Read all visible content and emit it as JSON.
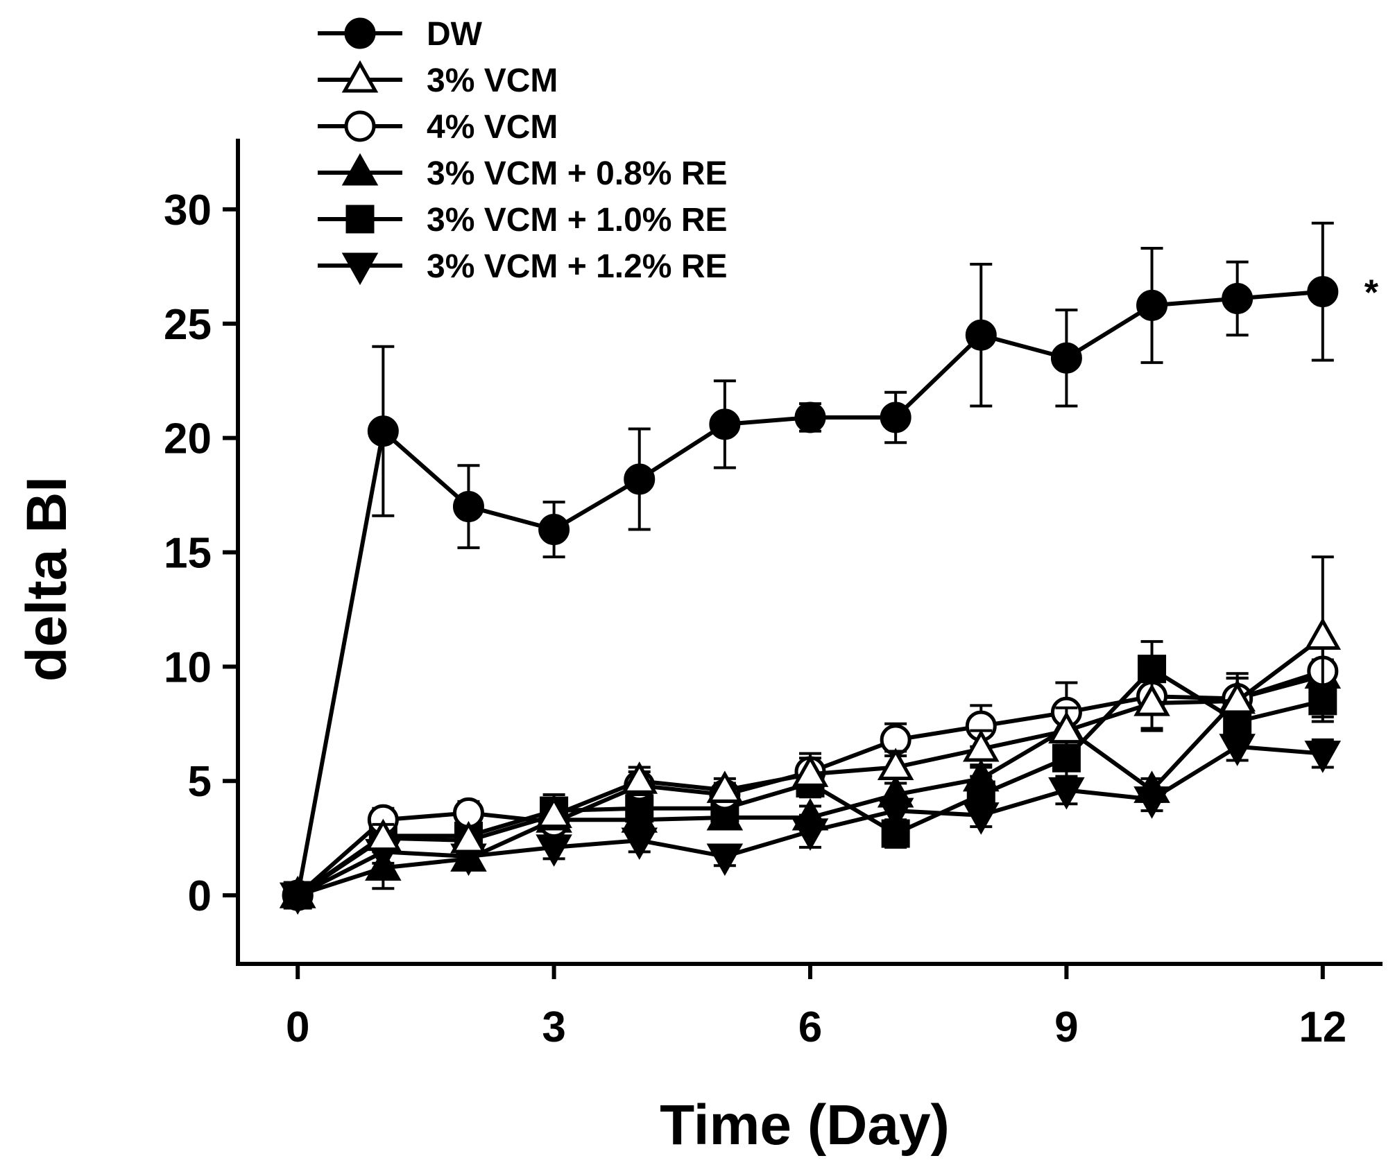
{
  "chart_data": {
    "type": "line",
    "title": "",
    "xlabel": "Time (Day)",
    "ylabel": "delta BI",
    "xlim": [
      -0.7,
      12.7
    ],
    "ylim": [
      -3,
      33
    ],
    "xticks": [
      0,
      3,
      6,
      9,
      12
    ],
    "yticks": [
      0,
      5,
      10,
      15,
      20,
      25,
      30
    ],
    "xtick_labels": [
      "0",
      "3",
      "6",
      "9",
      "12"
    ],
    "ytick_labels": [
      "0",
      "5",
      "10",
      "15",
      "20",
      "25",
      "30"
    ],
    "grid": false,
    "legend_position": "top-left",
    "x": [
      0,
      1,
      2,
      3,
      4,
      5,
      6,
      7,
      8,
      9,
      10,
      11,
      12
    ],
    "annotations": [
      {
        "text": "*",
        "x": 12,
        "y": 26.5
      }
    ],
    "series": [
      {
        "name": "DW",
        "marker": "filled-circle",
        "values": [
          0,
          20.3,
          17.0,
          16.0,
          18.2,
          20.6,
          20.9,
          20.9,
          24.5,
          23.5,
          25.8,
          26.1,
          26.4
        ],
        "errors": [
          0,
          3.7,
          1.8,
          1.2,
          2.2,
          1.9,
          0.6,
          1.1,
          3.1,
          2.1,
          2.5,
          1.6,
          3.0
        ]
      },
      {
        "name": "3% VCM",
        "marker": "open-triangle-up",
        "values": [
          0,
          2.5,
          2.4,
          3.5,
          5.0,
          4.6,
          5.3,
          5.6,
          6.4,
          7.2,
          8.4,
          8.5,
          11.3
        ],
        "errors": [
          0,
          0.6,
          0.5,
          0.6,
          0.6,
          0.5,
          0.7,
          0.7,
          0.8,
          1.0,
          1.2,
          1.0,
          3.5
        ]
      },
      {
        "name": "4% VCM",
        "marker": "open-circle",
        "values": [
          0,
          3.3,
          3.6,
          3.2,
          4.8,
          4.4,
          5.4,
          6.8,
          7.4,
          8.0,
          8.7,
          8.6,
          9.8
        ],
        "errors": [
          0,
          0.5,
          0.5,
          0.6,
          0.6,
          0.5,
          0.8,
          0.7,
          0.9,
          1.3,
          1.4,
          1.1,
          1.0
        ]
      },
      {
        "name": "3% VCM + 0.8% RE",
        "marker": "filled-triangle-up",
        "values": [
          0,
          1.2,
          1.6,
          3.3,
          3.3,
          3.4,
          3.4,
          4.4,
          5.1,
          7.3,
          4.6,
          8.6,
          9.6
        ],
        "errors": [
          0,
          0.9,
          0.4,
          0.5,
          0.5,
          0.4,
          0.5,
          0.5,
          0.6,
          0.6,
          0.5,
          0.9,
          0.7
        ]
      },
      {
        "name": "3% VCM + 1.0% RE",
        "marker": "filled-square",
        "values": [
          0,
          2.6,
          2.6,
          3.7,
          3.8,
          3.8,
          4.9,
          2.7,
          4.4,
          6.0,
          9.9,
          7.6,
          8.5
        ],
        "errors": [
          0,
          0.6,
          0.6,
          0.7,
          0.5,
          0.6,
          0.6,
          0.6,
          0.8,
          0.9,
          1.2,
          1.0,
          0.9
        ]
      },
      {
        "name": "3% VCM + 1.2% RE",
        "marker": "filled-triangle-down",
        "values": [
          0,
          1.9,
          1.7,
          2.1,
          2.4,
          1.7,
          2.8,
          3.7,
          3.5,
          4.6,
          4.2,
          6.5,
          6.2
        ],
        "errors": [
          0,
          0.5,
          0.4,
          0.5,
          0.5,
          0.4,
          0.7,
          0.6,
          0.5,
          0.6,
          0.5,
          0.6,
          0.6
        ]
      }
    ]
  }
}
